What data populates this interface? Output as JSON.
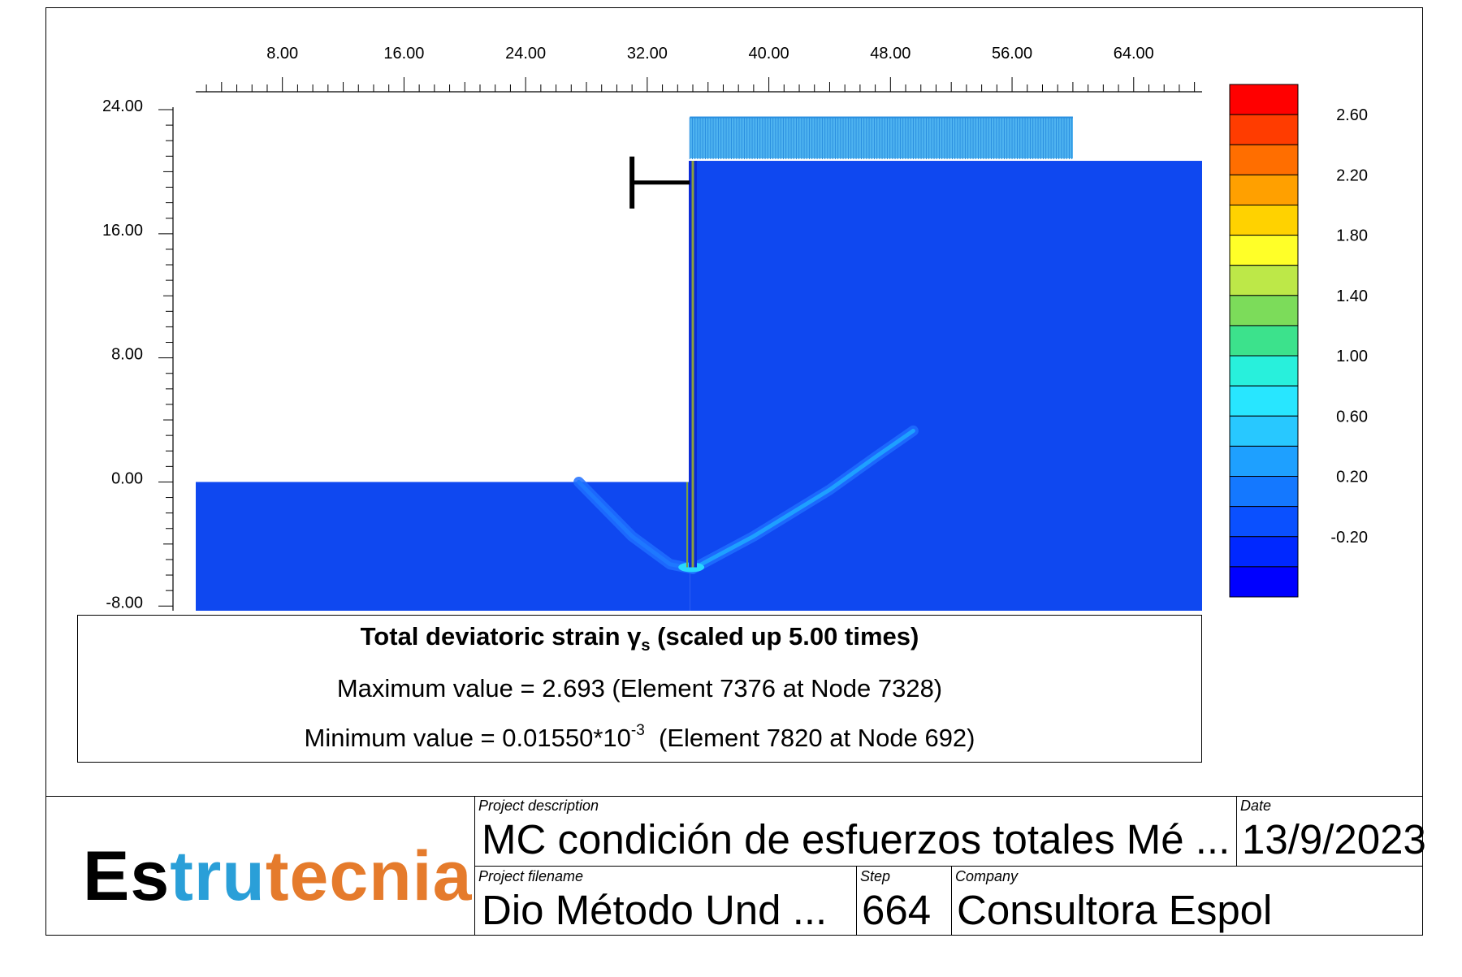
{
  "chart_data": {
    "type": "heatmap",
    "title": "Total deviatoric strain γs (scaled up 5.00 times)",
    "title_main": "Total deviatoric strain γ",
    "title_sub": "s",
    "title_tail": "(scaled up 5.00 times)",
    "x_ticks": [
      "8.00",
      "16.00",
      "24.00",
      "32.00",
      "40.00",
      "48.00",
      "56.00",
      "64.00"
    ],
    "x_tick_values": [
      8,
      16,
      24,
      32,
      40,
      48,
      56,
      64
    ],
    "xlim": [
      2.3,
      68.5
    ],
    "y_ticks": [
      "24.00",
      "16.00",
      "8.00",
      "0.00",
      "-8.00"
    ],
    "y_tick_values": [
      24,
      16,
      8,
      0,
      -8
    ],
    "ylim": [
      -8.3,
      24
    ],
    "ground_left": {
      "x": [
        2.3,
        34.8
      ],
      "y": [
        -8.3,
        0
      ]
    },
    "ground_right": {
      "x": [
        34.8,
        68.5
      ],
      "y": [
        -8.3,
        20.7
      ]
    },
    "wall": {
      "x": 35.0,
      "y": [
        -5.5,
        20.7
      ]
    },
    "strut": {
      "x": [
        31.0,
        34.8
      ],
      "y": 19.3
    },
    "surface_load": {
      "x": [
        34.8,
        60.0
      ],
      "y": [
        20.7,
        23.5
      ]
    },
    "shear_bands": [
      {
        "points": [
          [
            27.5,
            0
          ],
          [
            31,
            -3.5
          ],
          [
            33.5,
            -5.3
          ],
          [
            35,
            -5.6
          ]
        ]
      },
      {
        "points": [
          [
            35,
            -5.6
          ],
          [
            39,
            -3.5
          ],
          [
            44,
            -0.5
          ],
          [
            47,
            1.6
          ],
          [
            49.5,
            3.3
          ]
        ]
      }
    ],
    "colorbar": {
      "labels": [
        "2.60",
        "2.20",
        "1.80",
        "1.40",
        "1.00",
        "0.60",
        "0.20",
        "-0.20"
      ],
      "colors": [
        "#ff0000",
        "#ff3c00",
        "#ff6e00",
        "#ffa000",
        "#ffd200",
        "#ffff28",
        "#bde848",
        "#7cdc5a",
        "#3ce28c",
        "#28f0dc",
        "#28e6ff",
        "#28c8ff",
        "#1ea0ff",
        "#1478ff",
        "#0a50ff",
        "#0028ff",
        "#0000ff"
      ]
    },
    "max_value_label": "Maximum value = 2.693  (Element 7376 at Node 7328)",
    "min_value_label": "Minimum value = 0.01550*10",
    "min_exponent": "-3",
    "min_value_tail": "(Element 7820 at Node 692)"
  },
  "title_block": {
    "logo_part1": "Es",
    "logo_part2": "tru",
    "logo_part3": "t",
    "logo_part4": "ecnia",
    "project_description_caption": "Project description",
    "project_description": "MC condición de esfuerzos totales Mé ...",
    "date_caption": "Date",
    "date": "13/9/2023",
    "project_filename_caption": "Project filename",
    "project_filename": "Dio Método Und  ...",
    "step_caption": "Step",
    "step": "664",
    "company_caption": "Company",
    "company": "Consultora Espol"
  }
}
